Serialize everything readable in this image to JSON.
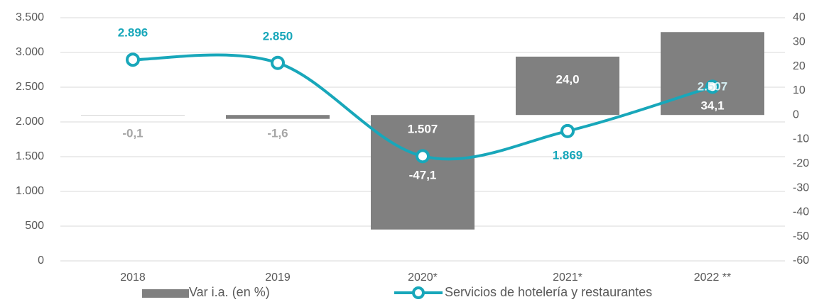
{
  "chart_data": {
    "type": "bar",
    "categories": [
      "2018",
      "2019",
      "2020*",
      "2021*",
      "2022 **"
    ],
    "series": [
      {
        "name": "Var i.a. (en %)",
        "type": "bar",
        "axis": "y2",
        "color": "#808080",
        "values": [
          -0.1,
          -1.6,
          -47.1,
          24.0,
          34.1
        ],
        "value_labels": [
          "-0,1",
          "-1,6",
          "-47,1",
          "24,0",
          "34,1"
        ]
      },
      {
        "name": "Servicios de hotelería y restaurantes",
        "type": "line",
        "color": "#18a7ba",
        "values": [
          2896,
          2850,
          1507,
          1869,
          2507
        ],
        "value_labels": [
          "2.896",
          "2.850",
          "1.507",
          "1.869",
          "2.507"
        ]
      }
    ],
    "ylim": [
      0,
      3500
    ],
    "yticks": [
      0,
      500,
      {
        "value": 1000,
        "label": "1.000"
      },
      {
        "value": 1500,
        "label": "1.500"
      },
      {
        "value": 2000,
        "label": "2.000"
      },
      {
        "value": 2500,
        "label": "2.500"
      },
      {
        "value": 3000,
        "label": "3.000"
      },
      {
        "value": 3500,
        "label": "3.500"
      }
    ],
    "y2lim": [
      -60,
      40
    ],
    "y2ticks": [
      -60,
      -50,
      -40,
      -30,
      -20,
      -10,
      0,
      10,
      20,
      30,
      40
    ],
    "grid": true,
    "legend": "bottom"
  }
}
